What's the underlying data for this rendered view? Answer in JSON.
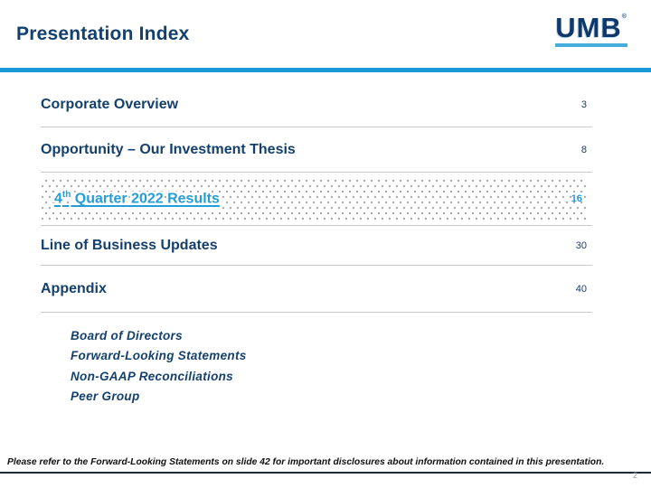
{
  "header": {
    "title": "Presentation Index",
    "logo_text": "UMB",
    "logo_reg": "®"
  },
  "colors": {
    "navy": "#14406E",
    "light_blue_rule": "#1899D6",
    "link_blue": "#249DD8",
    "separator_gray": "#C9C9C9",
    "dot_gray": "#ACACAC",
    "footer_rule": "#1B2A38",
    "slide_number_gray": "#9A9FA4"
  },
  "index": {
    "items": [
      {
        "label": "Corporate Overview",
        "page": "3"
      },
      {
        "label": "Opportunity – Our Investment Thesis",
        "page": "8"
      },
      {
        "label_num": "4",
        "label_sup": "th",
        "label_rest": " Quarter 2022 Results",
        "page": "16",
        "highlighted": true
      },
      {
        "label": "Line of Business Updates",
        "page": "30"
      },
      {
        "label": "Appendix",
        "page": "40"
      }
    ],
    "sub_items": [
      "Board of Directors",
      "Forward-Looking Statements",
      "Non-GAAP Reconciliations",
      "Peer Group"
    ]
  },
  "footer": {
    "disclaimer": "Please refer to the Forward-Looking Statements on slide 42 for important disclosures about information contained in this presentation.",
    "page_number": "2"
  }
}
